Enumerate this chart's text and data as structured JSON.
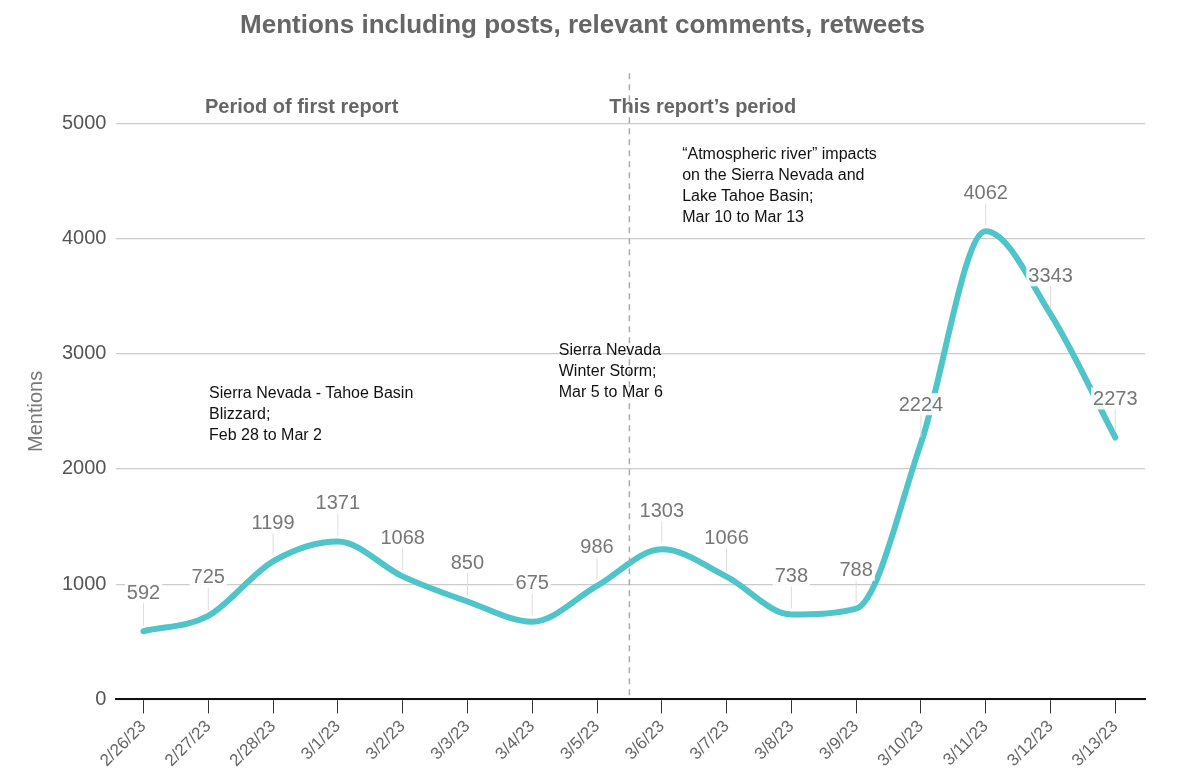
{
  "chart_data": {
    "type": "line",
    "title": "Mentions including posts, relevant comments, retweets",
    "ylabel": "Mentions",
    "x": [
      "--02-26",
      "--02-27",
      "--02-28",
      "--03-01",
      "--03-02",
      "--03-03",
      "--03-04",
      "--03-05",
      "--03-06",
      "--03-07",
      "--03-08",
      "--03-09",
      "--03-10",
      "--03-11",
      "--03-12",
      "--03-13"
    ],
    "series": [
      {
        "color": "#4fc4c9",
        "values": [
          592,
          725,
          1199,
          1371,
          1068,
          850,
          675,
          986,
          1303,
          1066,
          738,
          788,
          2224,
          4062,
          3343,
          2273
        ]
      }
    ],
    "xlim": [
      "--02-25T14:00",
      "--03-13T11:00"
    ],
    "xticks": [
      {
        "value": "--02-26",
        "label": "2/26/23"
      },
      {
        "value": "--02-27",
        "label": "2/27/23"
      },
      {
        "value": "--02-28",
        "label": "2/28/23"
      },
      {
        "value": "--03-01",
        "label": "3/1/23"
      },
      {
        "value": "--03-02",
        "label": "3/2/23"
      },
      {
        "value": "--03-03",
        "label": "3/3/23"
      },
      {
        "value": "--03-04",
        "label": "3/4/23"
      },
      {
        "value": "--03-05",
        "label": "3/5/23"
      },
      {
        "value": "--03-06",
        "label": "3/6/23"
      },
      {
        "value": "--03-07",
        "label": "3/7/23"
      },
      {
        "value": "--03-08",
        "label": "3/8/23"
      },
      {
        "value": "--03-09",
        "label": "3/9/23"
      },
      {
        "value": "--03-10",
        "label": "3/10/23"
      },
      {
        "value": "--03-11",
        "label": "3/11/23"
      },
      {
        "value": "--03-12",
        "label": "3/12/23"
      },
      {
        "value": "--03-13",
        "label": "3/13/23"
      }
    ],
    "ylim": [
      0,
      5000
    ],
    "yticks": [
      0,
      1000,
      2000,
      3000,
      4000,
      5000
    ],
    "grid": "y",
    "legend": false,
    "marker": "none",
    "line_style": "solid",
    "data_labels": true,
    "ref_lines": [
      {
        "axis": "x",
        "value": "--03-05T12:00",
        "color": "#aaaaaa",
        "line_style": "dashed"
      }
    ],
    "annotations": [
      "Period of first report",
      "This report’s period",
      "Sierra Nevada - Tahoe Basin\nBlizzard;\nFeb 28 to Mar 2",
      "Sierra Nevada\nWinter Storm;\nMar 5 to Mar 6",
      "“Atmospheric river” impacts\non the Sierra Nevada and\nLake Tahoe Basin;\nMar 10 to Mar 13"
    ]
  }
}
